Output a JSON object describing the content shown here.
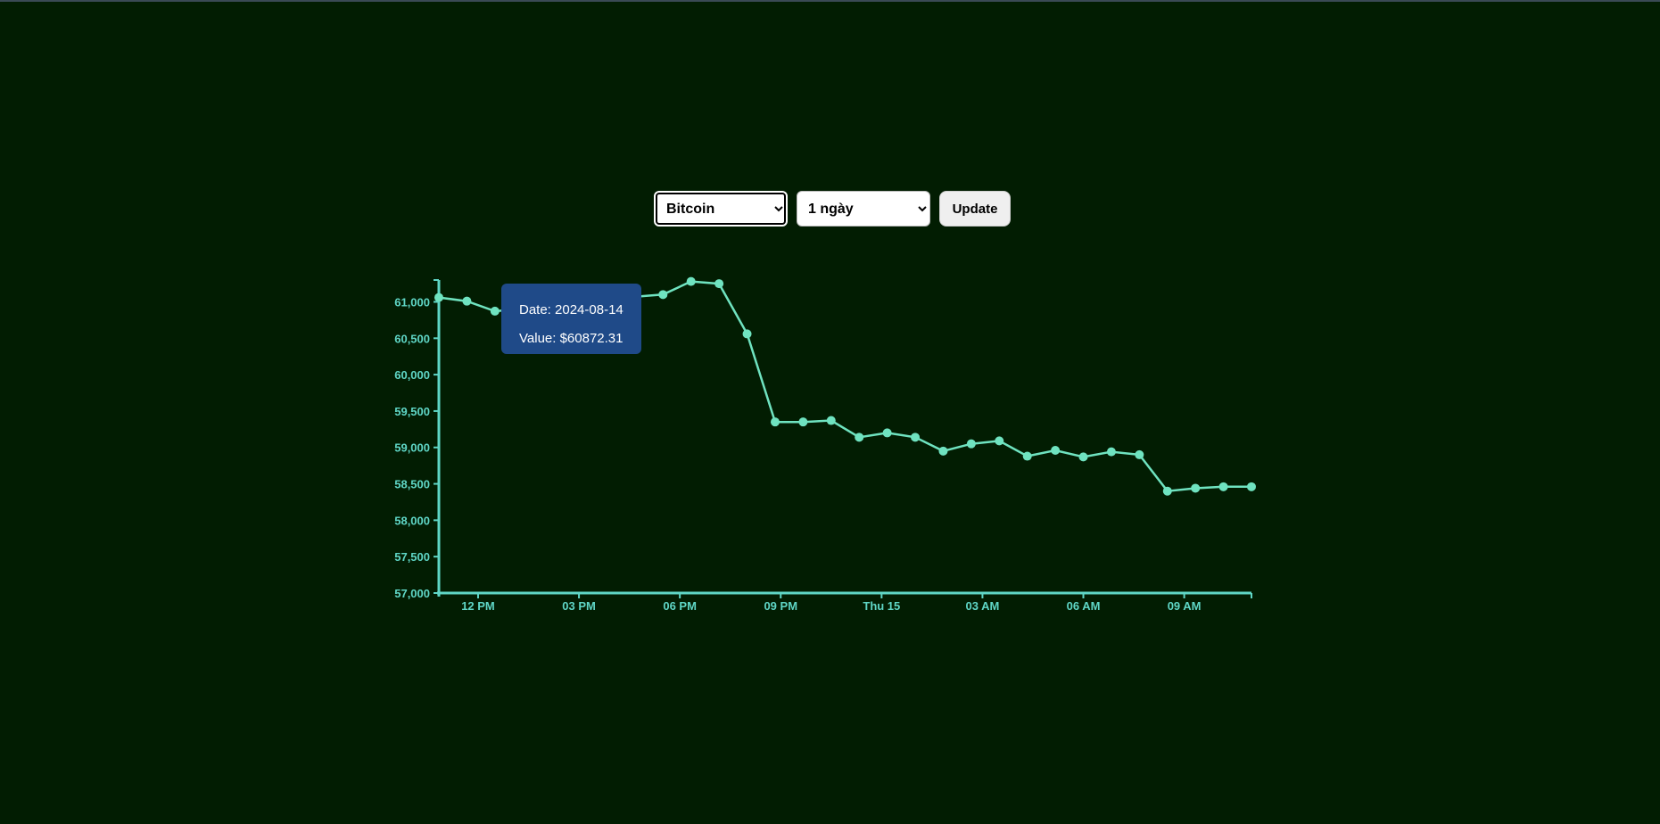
{
  "controls": {
    "coin_selected": "Bitcoin",
    "range_selected": "1 ngày",
    "update_label": "Update"
  },
  "tooltip": {
    "date_text": "Date: 2024-08-14",
    "value_text": "Value: $60872.31"
  },
  "colors": {
    "background": "#021d02",
    "line": "#6fe3c0",
    "axis": "#5fd6c6",
    "tooltip_bg": "#1f4a88"
  },
  "chart_data": {
    "type": "line",
    "title": "",
    "xlabel": "",
    "ylabel": "",
    "ylim": [
      57000,
      61300
    ],
    "y_ticks": [
      "57,000",
      "57,500",
      "58,000",
      "58,500",
      "59,000",
      "59,500",
      "60,000",
      "60,500",
      "61,000"
    ],
    "x_ticks": [
      "12 PM",
      "03 PM",
      "06 PM",
      "09 PM",
      "Thu 15",
      "03 AM",
      "06 AM",
      "09 AM"
    ],
    "series": [
      {
        "name": "",
        "x": [
          "2024-08-14 10:50",
          "2024-08-14 11:40",
          "2024-08-14 12:30",
          "2024-08-14 13:20",
          "2024-08-14 14:10",
          "2024-08-14 15:00",
          "2024-08-14 15:50",
          "2024-08-14 16:40",
          "2024-08-14 17:30",
          "2024-08-14 18:20",
          "2024-08-14 19:10",
          "2024-08-14 20:00",
          "2024-08-14 20:50",
          "2024-08-14 21:40",
          "2024-08-14 22:30",
          "2024-08-14 23:20",
          "2024-08-15 00:10",
          "2024-08-15 01:00",
          "2024-08-15 01:50",
          "2024-08-15 02:40",
          "2024-08-15 03:30",
          "2024-08-15 04:20",
          "2024-08-15 05:10",
          "2024-08-15 06:00",
          "2024-08-15 06:50",
          "2024-08-15 07:40",
          "2024-08-15 08:30",
          "2024-08-15 09:20",
          "2024-08-15 10:10",
          "2024-08-15 11:00"
        ],
        "values": [
          61060,
          61010,
          60872,
          60900,
          60960,
          60990,
          61050,
          61070,
          61100,
          61280,
          61250,
          60560,
          59350,
          59350,
          59370,
          59140,
          59200,
          59140,
          58950,
          59050,
          59090,
          58880,
          58960,
          58870,
          58940,
          58900,
          58400,
          58440,
          58460,
          58460
        ]
      }
    ]
  }
}
